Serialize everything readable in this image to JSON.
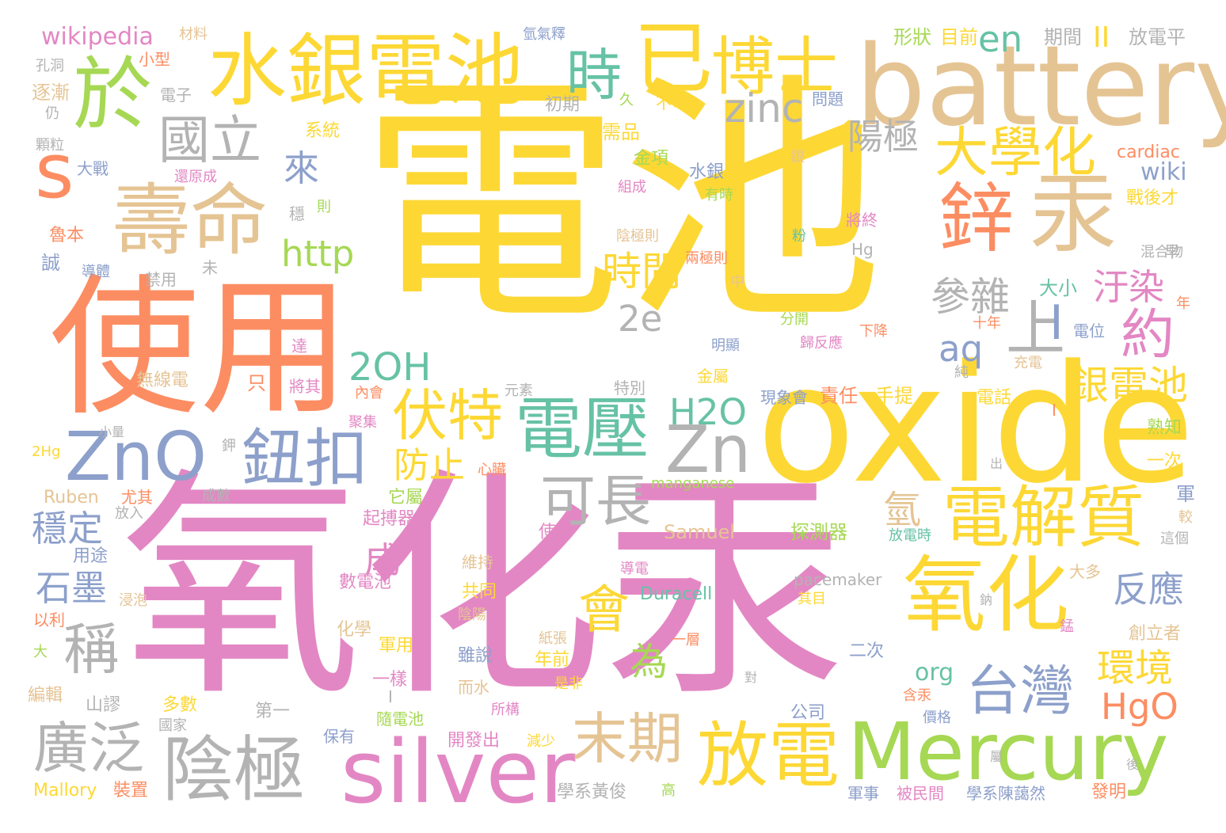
{
  "palette": {
    "yellow": "#fdd835",
    "pink": "#e387c4",
    "orange": "#fc8d62",
    "green": "#a6d854",
    "teal": "#66c2a5",
    "blue": "#8da0cb",
    "tan": "#e5c494",
    "gray": "#b3b3b3"
  },
  "words": [
    {
      "id": "w1",
      "text": "電池",
      "color": "yellow"
    },
    {
      "id": "w2",
      "text": "氧化汞",
      "color": "pink"
    },
    {
      "id": "w3",
      "text": "使用",
      "color": "orange"
    },
    {
      "id": "w4",
      "text": "oxide",
      "color": "yellow"
    },
    {
      "id": "w5",
      "text": "battery",
      "color": "tan"
    },
    {
      "id": "w6",
      "text": "水銀電池",
      "color": "yellow"
    },
    {
      "id": "w7",
      "text": "silver",
      "color": "pink"
    },
    {
      "id": "w8",
      "text": "Mercury",
      "color": "green"
    },
    {
      "id": "w9",
      "text": "氧化",
      "color": "yellow"
    },
    {
      "id": "w10",
      "text": "壽命",
      "color": "tan"
    },
    {
      "id": "w11",
      "text": "於",
      "color": "green"
    },
    {
      "id": "w12",
      "text": "已",
      "color": "yellow"
    },
    {
      "id": "w13",
      "text": "博士",
      "color": "yellow"
    },
    {
      "id": "w14",
      "text": "汞",
      "color": "tan"
    },
    {
      "id": "w15",
      "text": "鋅",
      "color": "orange"
    },
    {
      "id": "w16",
      "text": "放電",
      "color": "yellow"
    },
    {
      "id": "w17",
      "text": "陰極",
      "color": "gray"
    },
    {
      "id": "w18",
      "text": "電壓",
      "color": "teal"
    },
    {
      "id": "w19",
      "text": "Zn",
      "color": "gray"
    },
    {
      "id": "w20",
      "text": "ZnO",
      "color": "blue"
    },
    {
      "id": "w21",
      "text": "鈕扣",
      "color": "blue"
    },
    {
      "id": "w22",
      "text": "電解質",
      "color": "yellow"
    },
    {
      "id": "w23",
      "text": "台灣",
      "color": "blue"
    },
    {
      "id": "w24",
      "text": "末期",
      "color": "tan"
    },
    {
      "id": "w25",
      "text": "廣泛",
      "color": "gray"
    },
    {
      "id": "w26",
      "text": "國立",
      "color": "gray"
    },
    {
      "id": "w27",
      "text": "s",
      "color": "orange"
    },
    {
      "id": "w28",
      "text": "時",
      "color": "teal"
    },
    {
      "id": "w29",
      "text": "大學化",
      "color": "yellow"
    },
    {
      "id": "w30",
      "text": "伏特",
      "color": "yellow"
    },
    {
      "id": "w31",
      "text": "可長",
      "color": "gray"
    },
    {
      "id": "w32",
      "text": "上",
      "color": "gray"
    },
    {
      "id": "w33",
      "text": "約",
      "color": "pink"
    },
    {
      "id": "w34",
      "text": "稱",
      "color": "gray"
    },
    {
      "id": "w35",
      "text": "會",
      "color": "yellow"
    },
    {
      "id": "w36",
      "text": "zinc",
      "color": "gray"
    },
    {
      "id": "w37",
      "text": "en",
      "color": "teal"
    },
    {
      "id": "w38",
      "text": "陽極",
      "color": "gray"
    },
    {
      "id": "w39",
      "text": "來",
      "color": "blue"
    },
    {
      "id": "w40",
      "text": "http",
      "color": "green"
    },
    {
      "id": "w41",
      "text": "時間",
      "color": "yellow"
    },
    {
      "id": "w42",
      "text": "參雜",
      "color": "gray"
    },
    {
      "id": "w43",
      "text": "汙染",
      "color": "pink"
    },
    {
      "id": "w44",
      "text": "2e",
      "color": "gray"
    },
    {
      "id": "w45",
      "text": "aq",
      "color": "blue"
    },
    {
      "id": "w46",
      "text": "2OH",
      "color": "teal"
    },
    {
      "id": "w47",
      "text": "銀電池",
      "color": "yellow"
    },
    {
      "id": "w48",
      "text": "H2O",
      "color": "teal"
    },
    {
      "id": "w49",
      "text": "防止",
      "color": "yellow"
    },
    {
      "id": "w50",
      "text": "穩定",
      "color": "blue"
    },
    {
      "id": "w51",
      "text": "成",
      "color": "pink"
    },
    {
      "id": "w52",
      "text": "氫",
      "color": "tan"
    },
    {
      "id": "w53",
      "text": "反應",
      "color": "blue"
    },
    {
      "id": "w54",
      "text": "石墨",
      "color": "blue"
    },
    {
      "id": "w55",
      "text": "為",
      "color": "green"
    },
    {
      "id": "w56",
      "text": "環境",
      "color": "yellow"
    },
    {
      "id": "w57",
      "text": "HgO",
      "color": "orange"
    },
    {
      "id": "w58",
      "text": "wiki",
      "color": "blue"
    },
    {
      "id": "w59",
      "text": "wikipedia",
      "color": "pink"
    },
    {
      "id": "w60",
      "text": "org",
      "color": "teal"
    },
    {
      "id": "w61",
      "text": "材料",
      "color": "tan"
    },
    {
      "id": "w62",
      "text": "氫氣釋",
      "color": "blue"
    },
    {
      "id": "w63",
      "text": "形狀",
      "color": "green"
    },
    {
      "id": "w64",
      "text": "目前",
      "color": "yellow"
    },
    {
      "id": "w65",
      "text": "期間",
      "color": "gray"
    },
    {
      "id": "w66",
      "text": "放電平",
      "color": "gray"
    },
    {
      "id": "w67",
      "text": "小型",
      "color": "orange"
    },
    {
      "id": "w68",
      "text": "孔洞",
      "color": "gray"
    },
    {
      "id": "w69",
      "text": "逐漸",
      "color": "tan"
    },
    {
      "id": "w70",
      "text": "電子",
      "color": "gray"
    },
    {
      "id": "w71",
      "text": "仍",
      "color": "gray"
    },
    {
      "id": "w72",
      "text": "初期",
      "color": "gray"
    },
    {
      "id": "w73",
      "text": "久",
      "color": "green"
    },
    {
      "id": "w74",
      "text": "不可",
      "color": "yellow"
    },
    {
      "id": "w75",
      "text": "問題",
      "color": "blue"
    },
    {
      "id": "w76",
      "text": "系統",
      "color": "yellow"
    },
    {
      "id": "w77",
      "text": "需品",
      "color": "yellow"
    },
    {
      "id": "w78",
      "text": "顆粒",
      "color": "gray"
    },
    {
      "id": "w79",
      "text": "大戰",
      "color": "blue"
    },
    {
      "id": "w80",
      "text": "還原成",
      "color": "pink"
    },
    {
      "id": "w81",
      "text": "金項",
      "color": "green"
    },
    {
      "id": "w82",
      "text": "水銀",
      "color": "blue"
    },
    {
      "id": "w83",
      "text": "銀",
      "color": "tan"
    },
    {
      "id": "w84",
      "text": "cardiac",
      "color": "orange"
    },
    {
      "id": "w85",
      "text": "組成",
      "color": "pink"
    },
    {
      "id": "w86",
      "text": "有時",
      "color": "green"
    },
    {
      "id": "w87",
      "text": "戰後才",
      "color": "yellow"
    },
    {
      "id": "w88",
      "text": "穩",
      "color": "gray"
    },
    {
      "id": "w89",
      "text": "則",
      "color": "green"
    },
    {
      "id": "w90",
      "text": "魯本",
      "color": "orange"
    },
    {
      "id": "w91",
      "text": "陰極則",
      "color": "tan"
    },
    {
      "id": "w92",
      "text": "粉",
      "color": "teal"
    },
    {
      "id": "w93",
      "text": "將終",
      "color": "pink"
    },
    {
      "id": "w94",
      "text": "早",
      "color": "gray"
    },
    {
      "id": "w95",
      "text": "誠",
      "color": "blue"
    },
    {
      "id": "w96",
      "text": "導體",
      "color": "blue"
    },
    {
      "id": "w97",
      "text": "未",
      "color": "gray"
    },
    {
      "id": "w98",
      "text": "禁用",
      "color": "gray"
    },
    {
      "id": "w99",
      "text": "兩極則",
      "color": "orange"
    },
    {
      "id": "w100",
      "text": "Hg",
      "color": "gray"
    },
    {
      "id": "w101",
      "text": "混合物",
      "color": "gray"
    },
    {
      "id": "w102",
      "text": "中",
      "color": "tan"
    },
    {
      "id": "w103",
      "text": "大小",
      "color": "teal"
    },
    {
      "id": "w104",
      "text": "年",
      "color": "orange"
    },
    {
      "id": "w105",
      "text": "分開",
      "color": "green"
    },
    {
      "id": "w106",
      "text": "十年",
      "color": "orange"
    },
    {
      "id": "w107",
      "text": "電位",
      "color": "blue"
    },
    {
      "id": "w108",
      "text": "下降",
      "color": "orange"
    },
    {
      "id": "w109",
      "text": "達",
      "color": "pink"
    },
    {
      "id": "w110",
      "text": "明顯",
      "color": "blue"
    },
    {
      "id": "w111",
      "text": "歸反應",
      "color": "pink"
    },
    {
      "id": "w112",
      "text": "純",
      "color": "gray"
    },
    {
      "id": "w113",
      "text": "充電",
      "color": "tan"
    },
    {
      "id": "w114",
      "text": "無線電",
      "color": "tan"
    },
    {
      "id": "w115",
      "text": "只",
      "color": "orange"
    },
    {
      "id": "w116",
      "text": "將其",
      "color": "pink"
    },
    {
      "id": "w117",
      "text": "內會",
      "color": "orange"
    },
    {
      "id": "w118",
      "text": "元素",
      "color": "gray"
    },
    {
      "id": "w119",
      "text": "特別",
      "color": "gray"
    },
    {
      "id": "w120",
      "text": "金屬",
      "color": "yellow"
    },
    {
      "id": "w121",
      "text": "現象會",
      "color": "blue"
    },
    {
      "id": "w122",
      "text": "責任",
      "color": "orange"
    },
    {
      "id": "w123",
      "text": "手提",
      "color": "yellow"
    },
    {
      "id": "w124",
      "text": "電話",
      "color": "yellow"
    },
    {
      "id": "w125",
      "text": "聚集",
      "color": "pink"
    },
    {
      "id": "w126",
      "text": "熟知",
      "color": "green"
    },
    {
      "id": "w127",
      "text": "小量",
      "color": "gray"
    },
    {
      "id": "w128",
      "text": "2Hg",
      "color": "yellow"
    },
    {
      "id": "w129",
      "text": "鉀",
      "color": "gray"
    },
    {
      "id": "w130",
      "text": "一次",
      "color": "yellow"
    },
    {
      "id": "w131",
      "text": "出",
      "color": "gray"
    },
    {
      "id": "w132",
      "text": "心臟",
      "color": "orange"
    },
    {
      "id": "w133",
      "text": "manganese",
      "color": "green"
    },
    {
      "id": "w134",
      "text": "Ruben",
      "color": "tan"
    },
    {
      "id": "w135",
      "text": "尤其",
      "color": "orange"
    },
    {
      "id": "w136",
      "text": "成數",
      "color": "gray"
    },
    {
      "id": "w137",
      "text": "它屬",
      "color": "green"
    },
    {
      "id": "w138",
      "text": "軍",
      "color": "blue"
    },
    {
      "id": "w139",
      "text": "放入",
      "color": "gray"
    },
    {
      "id": "w140",
      "text": "起搏器",
      "color": "pink"
    },
    {
      "id": "w141",
      "text": "較",
      "color": "tan"
    },
    {
      "id": "w142",
      "text": "Samuel",
      "color": "tan"
    },
    {
      "id": "w143",
      "text": "探測器",
      "color": "green"
    },
    {
      "id": "w144",
      "text": "放電時",
      "color": "teal"
    },
    {
      "id": "w145",
      "text": "這個",
      "color": "gray"
    },
    {
      "id": "w146",
      "text": "用途",
      "color": "blue"
    },
    {
      "id": "w147",
      "text": "使",
      "color": "pink"
    },
    {
      "id": "w148",
      "text": "維持",
      "color": "tan"
    },
    {
      "id": "w149",
      "text": "pacemaker",
      "color": "gray"
    },
    {
      "id": "w150",
      "text": "導電",
      "color": "pink"
    },
    {
      "id": "w151",
      "text": "大多",
      "color": "tan"
    },
    {
      "id": "w152",
      "text": "數電池",
      "color": "pink"
    },
    {
      "id": "w153",
      "text": "共同",
      "color": "yellow"
    },
    {
      "id": "w154",
      "text": "浸泡",
      "color": "tan"
    },
    {
      "id": "w155",
      "text": "以利",
      "color": "orange"
    },
    {
      "id": "w156",
      "text": "Duracell",
      "color": "teal"
    },
    {
      "id": "w157",
      "text": "其目",
      "color": "yellow"
    },
    {
      "id": "w158",
      "text": "鈉",
      "color": "gray"
    },
    {
      "id": "w159",
      "text": "陰陽",
      "color": "tan"
    },
    {
      "id": "w160",
      "text": "化學",
      "color": "tan"
    },
    {
      "id": "w161",
      "text": "錳",
      "color": "pink"
    },
    {
      "id": "w162",
      "text": "創立者",
      "color": "tan"
    },
    {
      "id": "w163",
      "text": "大",
      "color": "green"
    },
    {
      "id": "w164",
      "text": "軍用",
      "color": "yellow"
    },
    {
      "id": "w165",
      "text": "雖說",
      "color": "blue"
    },
    {
      "id": "w166",
      "text": "紙張",
      "color": "tan"
    },
    {
      "id": "w167",
      "text": "一層",
      "color": "orange"
    },
    {
      "id": "w168",
      "text": "年前",
      "color": "yellow"
    },
    {
      "id": "w169",
      "text": "二次",
      "color": "blue"
    },
    {
      "id": "w170",
      "text": "一樣",
      "color": "pink"
    },
    {
      "id": "w171",
      "text": "而水",
      "color": "tan"
    },
    {
      "id": "w172",
      "text": "是非",
      "color": "yellow"
    },
    {
      "id": "w173",
      "text": "對",
      "color": "gray"
    },
    {
      "id": "w174",
      "text": "編輯",
      "color": "tan"
    },
    {
      "id": "w175",
      "text": "山謬",
      "color": "gray"
    },
    {
      "id": "w176",
      "text": "含汞",
      "color": "orange"
    },
    {
      "id": "w177",
      "text": "多數",
      "color": "yellow"
    },
    {
      "id": "w178",
      "text": "第一",
      "color": "gray"
    },
    {
      "id": "w179",
      "text": "國家",
      "color": "gray"
    },
    {
      "id": "w180",
      "text": "所構",
      "color": "pink"
    },
    {
      "id": "w181",
      "text": "公司",
      "color": "blue"
    },
    {
      "id": "w182",
      "text": "隨電池",
      "color": "green"
    },
    {
      "id": "w183",
      "text": "價格",
      "color": "blue"
    },
    {
      "id": "w184",
      "text": "保有",
      "color": "blue"
    },
    {
      "id": "w185",
      "text": "開發出",
      "color": "pink"
    },
    {
      "id": "w186",
      "text": "減少",
      "color": "yellow"
    },
    {
      "id": "w187",
      "text": "屬",
      "color": "gray"
    },
    {
      "id": "w188",
      "text": "後",
      "color": "gray"
    },
    {
      "id": "w189",
      "text": "Mallory",
      "color": "yellow"
    },
    {
      "id": "w190",
      "text": "裝置",
      "color": "orange"
    },
    {
      "id": "w191",
      "text": "學系黃俊",
      "color": "gray"
    },
    {
      "id": "w192",
      "text": "高",
      "color": "green"
    },
    {
      "id": "w193",
      "text": "軍事",
      "color": "blue"
    },
    {
      "id": "w194",
      "text": "被民間",
      "color": "pink"
    },
    {
      "id": "w195",
      "text": "學系陳藹然",
      "color": "blue"
    },
    {
      "id": "w196",
      "text": "發明",
      "color": "orange"
    },
    {
      "id": "w197",
      "text": "II",
      "color": "yellow"
    },
    {
      "id": "w198",
      "text": "I",
      "color": "blue"
    },
    {
      "id": "w199",
      "text": "I",
      "color": "orange"
    },
    {
      "id": "w200",
      "text": "I",
      "color": "gray"
    }
  ]
}
